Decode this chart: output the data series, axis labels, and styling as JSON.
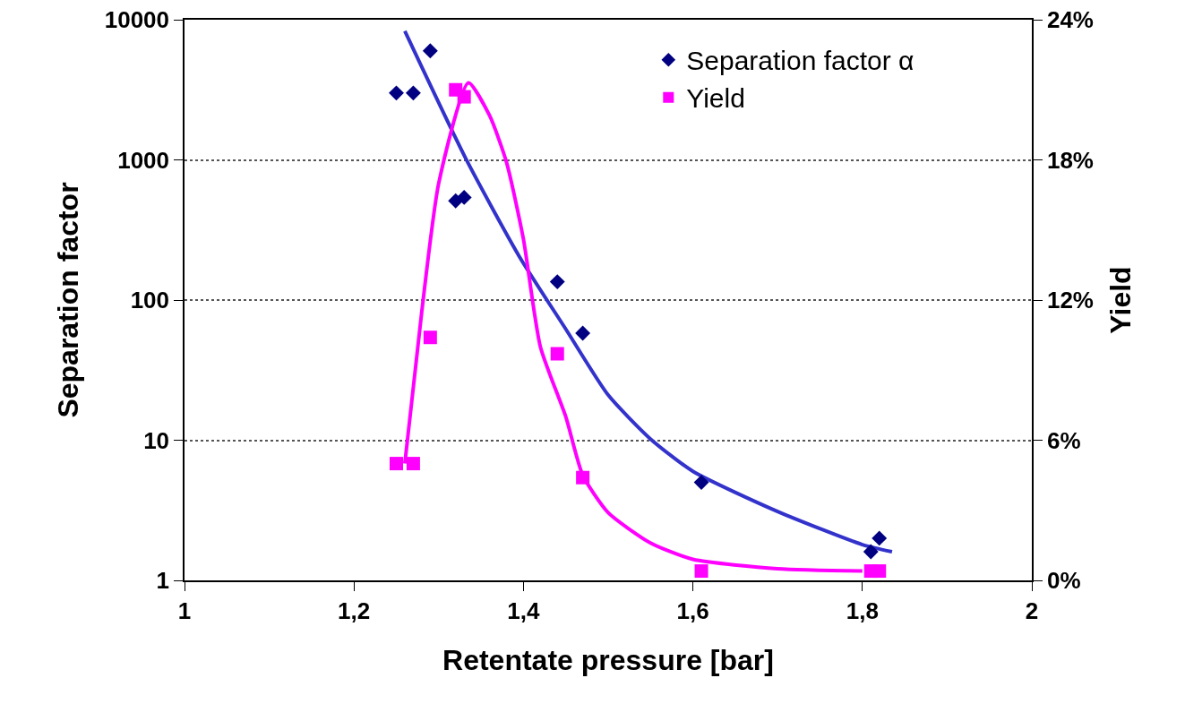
{
  "chart_data": {
    "type": "scatter",
    "xlabel": "Retentate pressure [bar]",
    "ylabel": "Separation factor",
    "y2label": "Yield",
    "xlim": [
      1,
      2
    ],
    "xticks": [
      1,
      {
        "value": 1.2,
        "label": "1,2"
      },
      {
        "value": 1.4,
        "label": "1,4"
      },
      {
        "value": 1.6,
        "label": "1,6"
      },
      {
        "value": 1.8,
        "label": "1,8"
      },
      2
    ],
    "ylim": [
      1,
      10000
    ],
    "yticks": [
      1,
      10,
      100,
      1000,
      10000
    ],
    "log": "y",
    "y2lim": [
      0,
      24
    ],
    "y2ticks": [
      {
        "value": 0,
        "label": "0%"
      },
      {
        "value": 6,
        "label": "6%"
      },
      {
        "value": 12,
        "label": "12%"
      },
      {
        "value": 18,
        "label": "18%"
      },
      {
        "value": 24,
        "label": "24%"
      }
    ],
    "grid": "y",
    "legend": "top right",
    "series": [
      {
        "name": "Separation factor α",
        "color": "#000080",
        "marker": "diamond",
        "x": [
          1.25,
          1.27,
          1.29,
          1.32,
          1.33,
          1.44,
          1.47,
          1.61,
          1.81,
          1.82
        ],
        "values": [
          3000,
          3000,
          6000,
          510,
          540,
          135,
          58,
          5,
          1.6,
          2
        ]
      },
      {
        "name": "Yield",
        "color": "#ff00ff",
        "marker": "square",
        "axis": "y2",
        "x": [
          1.25,
          1.27,
          1.29,
          1.32,
          1.33,
          1.44,
          1.47,
          1.61,
          1.81,
          1.82
        ],
        "values": [
          5,
          5,
          10.4,
          21,
          20.7,
          9.7,
          4.4,
          0.4,
          0.4,
          0.4
        ]
      },
      {
        "type": "line",
        "color": "#3333cc",
        "marker": "none",
        "x": [
          1.26,
          1.332,
          1.395,
          1.45,
          1.5,
          1.55,
          1.6,
          1.7,
          1.8,
          1.835
        ],
        "values": [
          8300,
          1020,
          205,
          62,
          21,
          10.2,
          6,
          3.1,
          1.8,
          1.6
        ]
      },
      {
        "type": "line",
        "color": "#ff00ff",
        "marker": "none",
        "axis": "y2",
        "x": [
          1.26,
          1.28,
          1.3,
          1.335,
          1.36,
          1.38,
          1.4,
          1.42,
          1.45,
          1.47,
          1.5,
          1.55,
          1.6,
          1.7,
          1.8
        ],
        "values": [
          5,
          11.5,
          17,
          21.3,
          19.9,
          17.9,
          14.6,
          10,
          7,
          4.5,
          2.9,
          1.6,
          0.9,
          0.5,
          0.4
        ]
      }
    ]
  }
}
